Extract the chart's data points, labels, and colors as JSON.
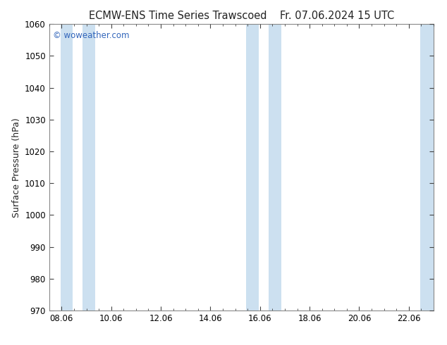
{
  "title_left": "ECMW-ENS Time Series Trawscoed",
  "title_right": "Fr. 07.06.2024 15 UTC",
  "ylabel": "Surface Pressure (hPa)",
  "ylim": [
    970,
    1060
  ],
  "yticks": [
    970,
    980,
    990,
    1000,
    1010,
    1020,
    1030,
    1040,
    1050,
    1060
  ],
  "xlim": [
    0,
    15.0
  ],
  "xtick_labels": [
    "08.06",
    "10.06",
    "12.06",
    "14.06",
    "16.06",
    "18.06",
    "20.06",
    "22.06"
  ],
  "xtick_positions": [
    0.0,
    2.0,
    4.0,
    6.0,
    8.0,
    10.0,
    12.0,
    14.0
  ],
  "watermark": "© woweather.com",
  "watermark_color": "#3366bb",
  "bg_color": "#ffffff",
  "plot_bg_color": "#ffffff",
  "shaded_bands": [
    {
      "xstart": -0.05,
      "xend": 0.45,
      "color": "#cce0f0"
    },
    {
      "xstart": 0.85,
      "xend": 1.35,
      "color": "#cce0f0"
    },
    {
      "xstart": 7.45,
      "xend": 7.95,
      "color": "#cce0f0"
    },
    {
      "xstart": 8.35,
      "xend": 8.85,
      "color": "#cce0f0"
    },
    {
      "xstart": 14.45,
      "xend": 15.05,
      "color": "#cce0f0"
    }
  ],
  "spine_color": "#888888",
  "tick_color": "#444444",
  "title_fontsize": 10.5,
  "label_fontsize": 9,
  "tick_fontsize": 8.5
}
